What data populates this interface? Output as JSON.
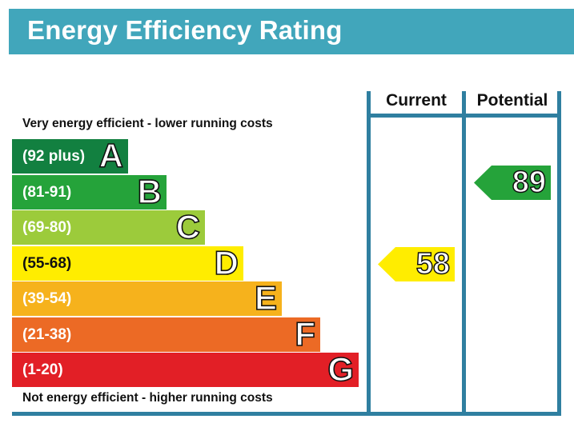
{
  "header": {
    "title": "Energy Efficiency Rating"
  },
  "notes": {
    "top": "Very energy efficient - lower running costs",
    "bottom": "Not energy efficient - higher running costs"
  },
  "columns": {
    "current": "Current",
    "potential": "Potential"
  },
  "chart_data": {
    "type": "bar",
    "title": "Energy Efficiency Rating",
    "categories": [
      "A",
      "B",
      "C",
      "D",
      "E",
      "F",
      "G"
    ],
    "ranges": [
      "(92 plus)",
      "(81-91)",
      "(69-80)",
      "(55-68)",
      "(39-54)",
      "(21-38)",
      "(1-20)"
    ],
    "colors": [
      "#128040",
      "#25a33a",
      "#9ccb3b",
      "#ffed00",
      "#f6b21c",
      "#ec6a25",
      "#e21f26"
    ],
    "current": {
      "label": "Current",
      "value": 58,
      "band": "D",
      "color": "#ffed00"
    },
    "potential": {
      "label": "Potential",
      "value": 89,
      "band": "B",
      "color": "#25a33a"
    }
  }
}
